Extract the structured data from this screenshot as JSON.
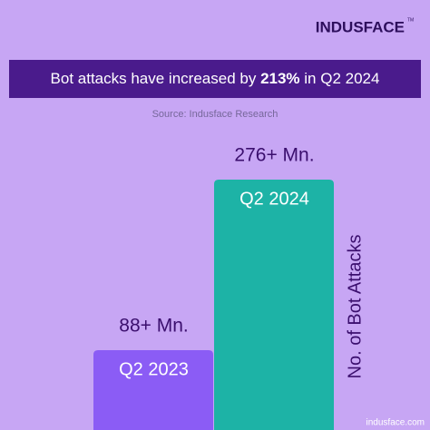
{
  "chart_data": {
    "type": "bar",
    "brand": "INDUSFACE",
    "brand_mark": "TM",
    "title": [
      "Bot attacks have increased by",
      "213%",
      "in Q2 2024"
    ],
    "source": "Source: Indusface Research",
    "categories": [
      "Q2 2023",
      "Q2 2024"
    ],
    "values": [
      88,
      276
    ],
    "value_labels": [
      "88+ Mn.",
      "276+ Mn."
    ],
    "colors": [
      "#8b5cf5",
      "#1db3a6"
    ],
    "y_label": "No. of Bot Attacks",
    "footer": "indusface.com"
  }
}
